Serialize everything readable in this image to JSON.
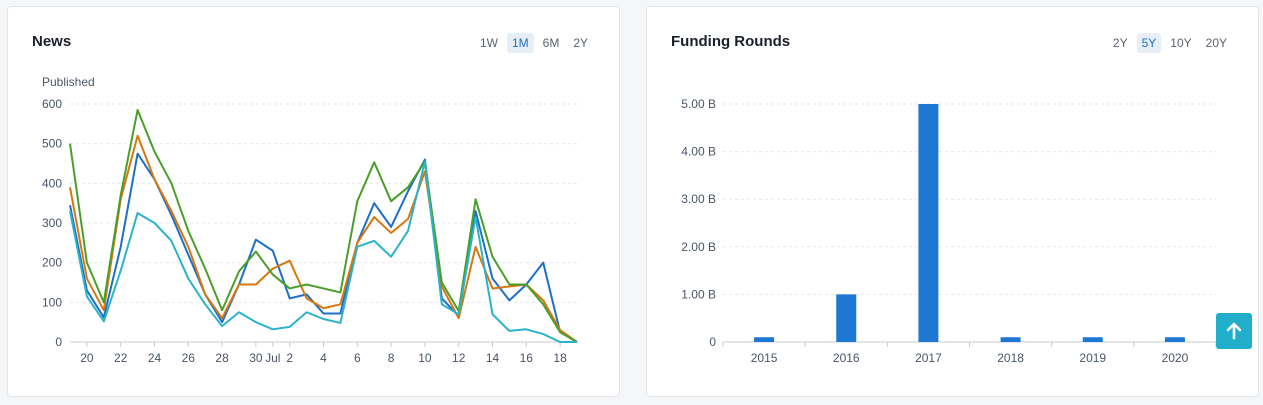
{
  "news": {
    "title": "News",
    "ranges": [
      "1W",
      "1M",
      "6M",
      "2Y"
    ],
    "active_range": "1M"
  },
  "funding": {
    "title": "Funding Rounds",
    "ranges": [
      "2Y",
      "5Y",
      "10Y",
      "20Y"
    ],
    "active_range": "5Y"
  },
  "chart_data": [
    {
      "type": "line",
      "ylabel": "Published",
      "ylim": [
        0,
        600
      ],
      "yticks": [
        0,
        100,
        200,
        300,
        400,
        500,
        600
      ],
      "x_index": [
        0,
        1,
        2,
        3,
        4,
        5,
        6,
        7,
        8,
        9,
        10,
        11,
        12,
        13,
        14,
        15,
        16,
        17,
        18,
        19,
        20,
        21,
        22,
        23,
        24,
        25,
        26,
        27,
        28,
        29,
        30
      ],
      "xtick_labels": [
        {
          "i": 1,
          "label": "20"
        },
        {
          "i": 3,
          "label": "22"
        },
        {
          "i": 5,
          "label": "24"
        },
        {
          "i": 7,
          "label": "26"
        },
        {
          "i": 9,
          "label": "28"
        },
        {
          "i": 11,
          "label": "30"
        },
        {
          "i": 12,
          "label": "Jul"
        },
        {
          "i": 13,
          "label": "2"
        },
        {
          "i": 15,
          "label": "4"
        },
        {
          "i": 17,
          "label": "6"
        },
        {
          "i": 19,
          "label": "8"
        },
        {
          "i": 21,
          "label": "10"
        },
        {
          "i": 23,
          "label": "12"
        },
        {
          "i": 25,
          "label": "14"
        },
        {
          "i": 27,
          "label": "16"
        },
        {
          "i": 29,
          "label": "18"
        }
      ],
      "grid": true,
      "series": [
        {
          "color": "#1e6fc8",
          "values": [
            345,
            130,
            62,
            240,
            475,
            410,
            320,
            220,
            120,
            50,
            145,
            258,
            230,
            110,
            120,
            72,
            72,
            250,
            350,
            290,
            380,
            460,
            110,
            65,
            330,
            160,
            105,
            145,
            200,
            25,
            0
          ]
        },
        {
          "color": "#d9770f",
          "values": [
            390,
            160,
            80,
            360,
            520,
            410,
            330,
            240,
            120,
            60,
            145,
            145,
            185,
            205,
            110,
            85,
            95,
            250,
            315,
            275,
            310,
            430,
            140,
            60,
            240,
            135,
            140,
            145,
            105,
            30,
            0
          ]
        },
        {
          "color": "#4a9e2a",
          "values": [
            500,
            200,
            100,
            370,
            585,
            480,
            400,
            280,
            185,
            80,
            178,
            228,
            170,
            135,
            145,
            135,
            125,
            355,
            453,
            355,
            390,
            455,
            150,
            78,
            360,
            215,
            145,
            145,
            95,
            25,
            0
          ]
        },
        {
          "color": "#2ab3c9",
          "values": [
            330,
            115,
            52,
            180,
            325,
            300,
            255,
            160,
            95,
            40,
            75,
            50,
            32,
            38,
            75,
            58,
            48,
            240,
            255,
            215,
            280,
            455,
            95,
            70,
            315,
            70,
            28,
            32,
            20,
            0,
            0
          ]
        }
      ]
    },
    {
      "type": "bar",
      "categories": [
        "2015",
        "2016",
        "2017",
        "2018",
        "2019",
        "2020"
      ],
      "values": [
        0.1,
        1.0,
        5.0,
        0.1,
        0.1,
        0.1
      ],
      "ylim": [
        0,
        5
      ],
      "ytick_labels": [
        "0",
        "1.00 B",
        "2.00 B",
        "3.00 B",
        "4.00 B",
        "5.00 B"
      ],
      "color": "#1e78d3",
      "grid": true
    }
  ]
}
